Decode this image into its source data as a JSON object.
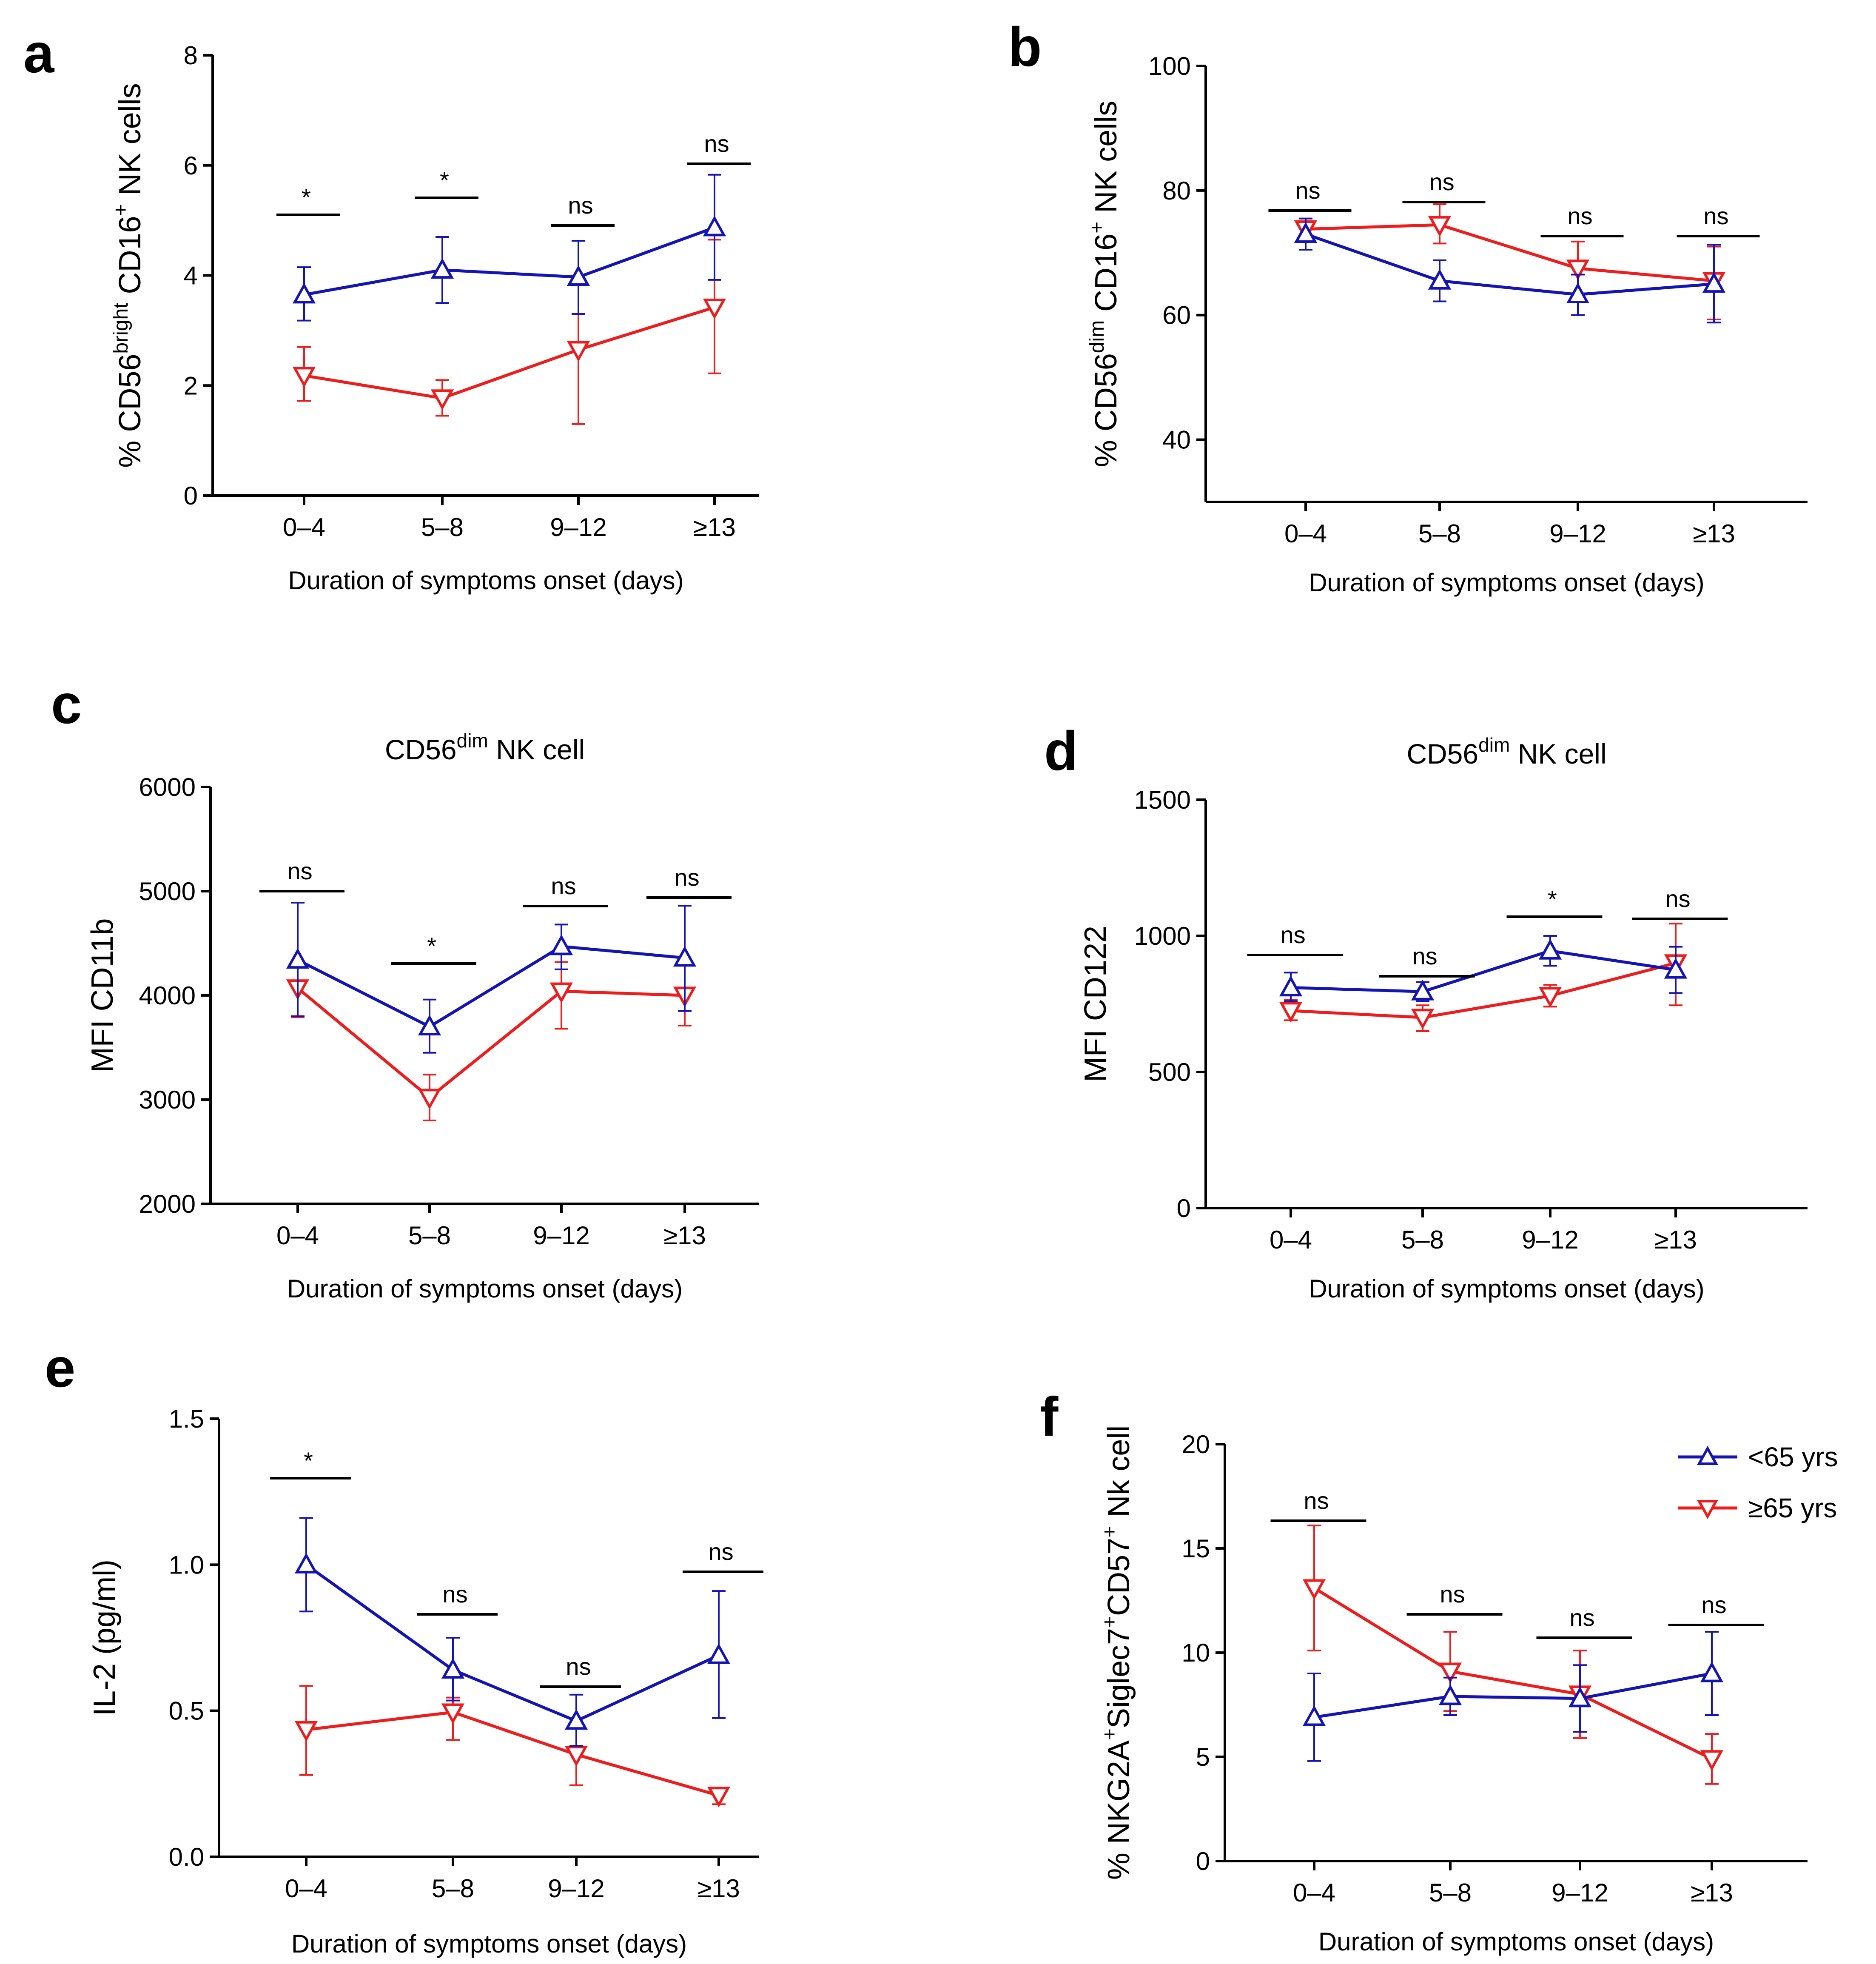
{
  "colors": {
    "blue": "#1414b4",
    "red": "#ee1c1c",
    "axis": "#000000"
  },
  "legend": [
    {
      "name": "<65 yrs",
      "color": "#1414b4",
      "marker": "triangle-up"
    },
    {
      "name": "≥65 yrs",
      "color": "#ee1c1c",
      "marker": "triangle-down"
    }
  ],
  "chart_data": [
    {
      "panel": "a",
      "type": "line",
      "title": "",
      "ylabel": {
        "pre": "% CD56",
        "sup1": "bright",
        "mid": " CD16",
        "sup2": "+",
        "post": " NK cells"
      },
      "xlabel": "Duration of symptoms onset (days)",
      "categories": [
        "0–4",
        "5–8",
        "9–12",
        "≥13"
      ],
      "ylim": [
        0,
        8
      ],
      "yticks": [
        0,
        2,
        4,
        6,
        8
      ],
      "series": [
        {
          "name": "<65 yrs",
          "values": [
            3.65,
            4.1,
            3.97,
            4.87
          ],
          "err_hi": [
            4.15,
            4.7,
            4.63,
            5.83
          ],
          "err_lo": [
            3.18,
            3.5,
            3.3,
            3.92
          ]
        },
        {
          "name": "≥65 yrs",
          "values": [
            2.18,
            1.77,
            2.65,
            3.42
          ],
          "err_hi": [
            2.7,
            2.1,
            3.3,
            4.65
          ],
          "err_lo": [
            1.72,
            1.45,
            1.3,
            2.22
          ]
        }
      ],
      "significance": [
        "*",
        "*",
        "ns",
        "ns"
      ]
    },
    {
      "panel": "b",
      "type": "line",
      "title": "",
      "ylabel": {
        "pre": "% CD56",
        "sup1": "dim",
        "mid": " CD16",
        "sup2": "+",
        "post": " NK cells"
      },
      "xlabel": "Duration of symptoms onset (days)",
      "categories": [
        "0–4",
        "5–8",
        "9–12",
        "≥13"
      ],
      "ylim": [
        30,
        100
      ],
      "yticks": [
        40,
        60,
        80,
        100
      ],
      "series": [
        {
          "name": "<65 yrs",
          "values": [
            73.0,
            65.5,
            63.3,
            65.0
          ],
          "err_hi": [
            75.5,
            68.8,
            66.5,
            71.3
          ],
          "err_lo": [
            70.5,
            62.2,
            60.0,
            58.8
          ]
        },
        {
          "name": "≥65 yrs",
          "values": [
            73.8,
            74.5,
            67.5,
            65.5
          ],
          "err_hi": [
            75.5,
            77.8,
            71.8,
            71.0
          ],
          "err_lo": [
            72.0,
            71.5,
            63.5,
            59.3
          ]
        }
      ],
      "significance": [
        "ns",
        "ns",
        "ns",
        "ns"
      ]
    },
    {
      "panel": "c",
      "type": "line",
      "title": {
        "pre": "CD56",
        "sup": "dim",
        "post": " NK cell"
      },
      "ylabel": {
        "pre": "MFI CD11b",
        "sup1": "",
        "mid": "",
        "sup2": "",
        "post": ""
      },
      "xlabel": "Duration of symptoms onset (days)",
      "categories": [
        "0–4",
        "5–8",
        "9–12",
        "≥13"
      ],
      "ylim": [
        2000,
        6000
      ],
      "yticks": [
        2000,
        3000,
        4000,
        5000,
        6000
      ],
      "series": [
        {
          "name": "<65 yrs",
          "values": [
            4340,
            3700,
            4470,
            4360
          ],
          "err_hi": [
            4890,
            3960,
            4680,
            4860
          ],
          "err_lo": [
            3800,
            3450,
            4250,
            3850
          ]
        },
        {
          "name": "≥65 yrs",
          "values": [
            4070,
            3020,
            4040,
            4000
          ],
          "err_hi": [
            4320,
            3240,
            4320,
            4290
          ],
          "err_lo": [
            3790,
            2800,
            3680,
            3710
          ]
        }
      ],
      "significance": [
        "ns",
        "*",
        "ns",
        "ns"
      ]
    },
    {
      "panel": "d",
      "type": "line",
      "title": {
        "pre": "CD56",
        "sup": "dim",
        "post": " NK cell"
      },
      "ylabel": {
        "pre": "MFI CD122",
        "sup1": "",
        "mid": "",
        "sup2": "",
        "post": ""
      },
      "xlabel": "Duration of symptoms onset (days)",
      "categories": [
        "0–4",
        "5–8",
        "9–12",
        "≥13"
      ],
      "ylim": [
        0,
        1500
      ],
      "yticks": [
        0,
        500,
        1000,
        1500
      ],
      "series": [
        {
          "name": "<65 yrs",
          "values": [
            810,
            795,
            945,
            875
          ],
          "err_hi": [
            865,
            830,
            1000,
            960
          ],
          "err_lo": [
            760,
            760,
            890,
            790
          ]
        },
        {
          "name": "≥65 yrs",
          "values": [
            725,
            700,
            780,
            900
          ],
          "err_hi": [
            765,
            745,
            820,
            1045
          ],
          "err_lo": [
            690,
            650,
            740,
            745
          ]
        }
      ],
      "significance": [
        "ns",
        "ns",
        "*",
        "ns"
      ]
    },
    {
      "panel": "e",
      "type": "line",
      "title": "",
      "ylabel": {
        "pre": "IL-2 (pg/ml)",
        "sup1": "",
        "mid": "",
        "sup2": "",
        "post": ""
      },
      "xlabel": "Duration of symptoms onset (days)",
      "categories": [
        "0–4",
        "5–8",
        "9–12",
        "≥13"
      ],
      "ylim": [
        0,
        1.5
      ],
      "yticks": [
        0.0,
        0.5,
        1.0,
        1.5
      ],
      "ytick_labels": [
        "0.0",
        "0.5",
        "1.0",
        "1.5"
      ],
      "series": [
        {
          "name": "<65 yrs",
          "values": [
            1.0,
            0.64,
            0.465,
            0.69
          ],
          "err_hi": [
            1.16,
            0.75,
            0.555,
            0.91
          ],
          "err_lo": [
            0.84,
            0.535,
            0.38,
            0.475
          ]
        },
        {
          "name": "≥65 yrs",
          "values": [
            0.435,
            0.495,
            0.35,
            0.21
          ],
          "err_hi": [
            0.585,
            0.545,
            0.44,
            0.225
          ],
          "err_lo": [
            0.28,
            0.4,
            0.245,
            0.18
          ]
        }
      ],
      "significance": [
        "*",
        "ns",
        "ns",
        "ns"
      ]
    },
    {
      "panel": "f",
      "type": "line",
      "title": "",
      "ylabel": {
        "pre": "% NKG2A",
        "sup1": "+",
        "mid": "Siglec7",
        "sup2": "+",
        "post": "CD57",
        "sup3": "+",
        "post2": " Nk cell"
      },
      "xlabel": "Duration of symptoms onset (days)",
      "categories": [
        "0–4",
        "5–8",
        "9–12",
        "≥13"
      ],
      "ylim": [
        0,
        20
      ],
      "yticks": [
        0,
        5,
        10,
        15,
        20
      ],
      "series": [
        {
          "name": "<65 yrs",
          "values": [
            6.9,
            7.9,
            7.8,
            9.0
          ],
          "err_hi": [
            9.0,
            8.8,
            9.4,
            11.0
          ],
          "err_lo": [
            4.8,
            7.0,
            6.2,
            7.0
          ]
        },
        {
          "name": "≥65 yrs",
          "values": [
            13.1,
            9.1,
            8.0,
            4.9
          ],
          "err_hi": [
            16.1,
            11.0,
            10.1,
            6.1
          ],
          "err_lo": [
            10.1,
            7.2,
            5.9,
            3.7
          ]
        }
      ],
      "significance": [
        "ns",
        "ns",
        "ns",
        "ns"
      ]
    }
  ]
}
